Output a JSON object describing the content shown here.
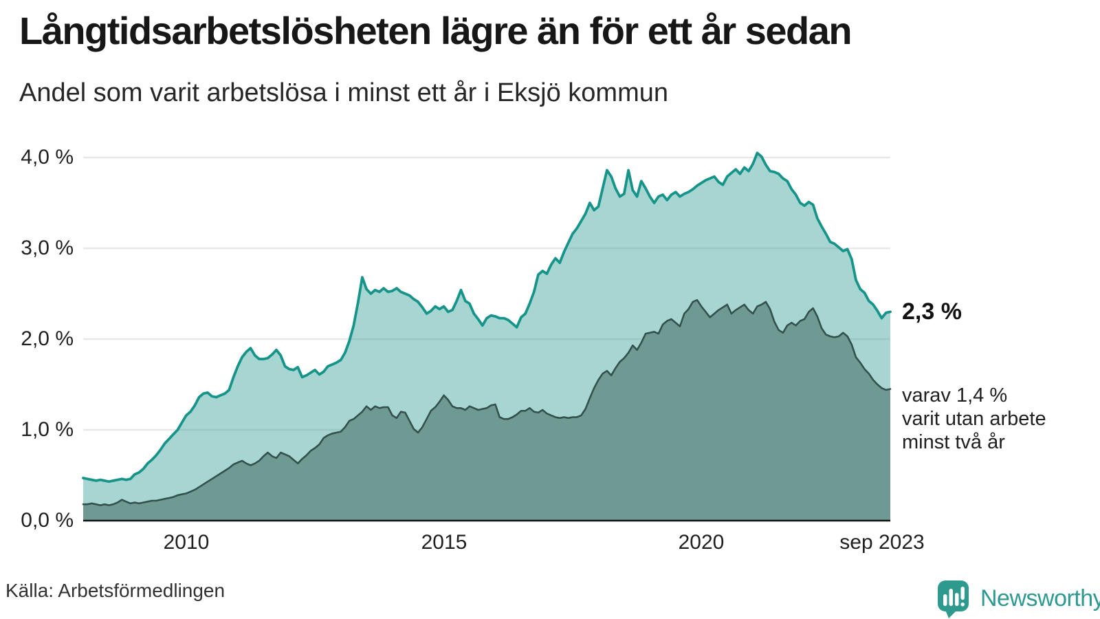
{
  "header": {
    "title": "Långtidsarbetslösheten lägre än för ett år sedan",
    "subtitle": "Andel som varit arbetslösa i minst ett år i Eksjö kommun"
  },
  "chart_data": {
    "type": "area",
    "title": "Långtidsarbetslösheten lägre än för ett år sedan",
    "subtitle": "Andel som varit arbetslösa i minst ett år i Eksjö kommun",
    "x_start": "2008-01",
    "x_end": "2023-09",
    "x_ticks": [
      {
        "label": "2010",
        "month_index": 24
      },
      {
        "label": "2015",
        "month_index": 84
      },
      {
        "label": "2020",
        "month_index": 144
      },
      {
        "label": "sep 2023",
        "month_index": 186
      }
    ],
    "y_ticks": [
      {
        "label": "0,0 %",
        "value": 0
      },
      {
        "label": "1,0 %",
        "value": 1
      },
      {
        "label": "2,0 %",
        "value": 2
      },
      {
        "label": "3,0 %",
        "value": 3
      },
      {
        "label": "4,0 %",
        "value": 4
      }
    ],
    "ylim": [
      0,
      4.3
    ],
    "grid": true,
    "legend": "none",
    "colors": {
      "line_1yr": "#17948a",
      "fill_1yr": "rgba(23,148,138,0.38)",
      "line_2yr": "#33504c",
      "fill_2yr": "#6f9a94",
      "gridline": "#e8e8eb",
      "axis": "#111111"
    },
    "series": [
      {
        "name": "Arbetslösa minst ett år",
        "last_value": 2.3,
        "values": [
          0.47,
          0.46,
          0.45,
          0.44,
          0.45,
          0.44,
          0.43,
          0.44,
          0.45,
          0.46,
          0.45,
          0.46,
          0.51,
          0.53,
          0.57,
          0.63,
          0.67,
          0.72,
          0.78,
          0.85,
          0.9,
          0.95,
          1.0,
          1.08,
          1.16,
          1.2,
          1.27,
          1.36,
          1.4,
          1.41,
          1.37,
          1.36,
          1.38,
          1.4,
          1.44,
          1.58,
          1.7,
          1.8,
          1.86,
          1.9,
          1.82,
          1.78,
          1.78,
          1.79,
          1.83,
          1.88,
          1.82,
          1.7,
          1.67,
          1.66,
          1.69,
          1.58,
          1.6,
          1.63,
          1.66,
          1.61,
          1.64,
          1.7,
          1.72,
          1.74,
          1.77,
          1.85,
          1.98,
          2.15,
          2.4,
          2.68,
          2.55,
          2.5,
          2.54,
          2.52,
          2.56,
          2.52,
          2.53,
          2.56,
          2.52,
          2.5,
          2.48,
          2.44,
          2.41,
          2.35,
          2.28,
          2.31,
          2.36,
          2.33,
          2.36,
          2.3,
          2.32,
          2.42,
          2.54,
          2.42,
          2.39,
          2.28,
          2.22,
          2.15,
          2.23,
          2.26,
          2.25,
          2.23,
          2.23,
          2.21,
          2.17,
          2.13,
          2.24,
          2.28,
          2.39,
          2.52,
          2.71,
          2.75,
          2.72,
          2.82,
          2.89,
          2.84,
          2.96,
          3.06,
          3.16,
          3.22,
          3.3,
          3.38,
          3.5,
          3.42,
          3.46,
          3.66,
          3.86,
          3.79,
          3.66,
          3.57,
          3.6,
          3.86,
          3.64,
          3.57,
          3.74,
          3.66,
          3.57,
          3.5,
          3.57,
          3.59,
          3.53,
          3.59,
          3.62,
          3.57,
          3.6,
          3.62,
          3.65,
          3.69,
          3.72,
          3.75,
          3.77,
          3.79,
          3.73,
          3.7,
          3.79,
          3.83,
          3.87,
          3.82,
          3.89,
          3.85,
          3.93,
          4.05,
          4.01,
          3.92,
          3.85,
          3.84,
          3.82,
          3.77,
          3.74,
          3.65,
          3.59,
          3.5,
          3.47,
          3.51,
          3.48,
          3.33,
          3.24,
          3.16,
          3.07,
          3.05,
          3.01,
          2.97,
          2.99,
          2.88,
          2.65,
          2.55,
          2.51,
          2.42,
          2.38,
          2.31,
          2.23,
          2.29,
          2.3
        ]
      },
      {
        "name": "Varav utan arbete minst två år",
        "last_value": 1.4,
        "values": [
          0.18,
          0.18,
          0.19,
          0.18,
          0.17,
          0.18,
          0.17,
          0.18,
          0.2,
          0.23,
          0.21,
          0.19,
          0.2,
          0.19,
          0.2,
          0.21,
          0.22,
          0.22,
          0.23,
          0.24,
          0.25,
          0.26,
          0.28,
          0.29,
          0.3,
          0.32,
          0.34,
          0.37,
          0.4,
          0.43,
          0.46,
          0.49,
          0.52,
          0.55,
          0.58,
          0.62,
          0.64,
          0.66,
          0.63,
          0.61,
          0.63,
          0.66,
          0.71,
          0.75,
          0.71,
          0.69,
          0.75,
          0.73,
          0.71,
          0.67,
          0.63,
          0.68,
          0.72,
          0.77,
          0.8,
          0.84,
          0.91,
          0.94,
          0.96,
          0.97,
          0.98,
          1.03,
          1.1,
          1.12,
          1.16,
          1.2,
          1.26,
          1.22,
          1.26,
          1.24,
          1.25,
          1.25,
          1.16,
          1.13,
          1.2,
          1.19,
          1.1,
          1.01,
          0.97,
          1.03,
          1.12,
          1.21,
          1.25,
          1.31,
          1.38,
          1.33,
          1.26,
          1.24,
          1.24,
          1.22,
          1.26,
          1.24,
          1.22,
          1.23,
          1.24,
          1.27,
          1.28,
          1.14,
          1.12,
          1.12,
          1.14,
          1.17,
          1.21,
          1.21,
          1.24,
          1.2,
          1.19,
          1.22,
          1.18,
          1.16,
          1.14,
          1.13,
          1.14,
          1.13,
          1.14,
          1.14,
          1.16,
          1.23,
          1.35,
          1.46,
          1.55,
          1.62,
          1.65,
          1.6,
          1.68,
          1.75,
          1.79,
          1.85,
          1.93,
          1.88,
          1.96,
          2.06,
          2.07,
          2.08,
          2.06,
          2.16,
          2.2,
          2.22,
          2.18,
          2.14,
          2.28,
          2.33,
          2.41,
          2.43,
          2.36,
          2.3,
          2.24,
          2.28,
          2.32,
          2.35,
          2.38,
          2.28,
          2.32,
          2.35,
          2.38,
          2.32,
          2.28,
          2.36,
          2.38,
          2.41,
          2.33,
          2.19,
          2.1,
          2.07,
          2.15,
          2.18,
          2.15,
          2.2,
          2.22,
          2.3,
          2.34,
          2.25,
          2.12,
          2.05,
          2.03,
          2.02,
          2.03,
          2.07,
          2.03,
          1.94,
          1.8,
          1.74,
          1.67,
          1.62,
          1.55,
          1.5,
          1.46,
          1.44,
          1.45
        ]
      }
    ],
    "annotations": {
      "value_label": "2,3 %",
      "secondary_label": "varav 1,4 %\nvarit utan arbete\nminst två år"
    }
  },
  "annotations": {
    "value": "2,3 %",
    "secondary": "varav 1,4 %\nvarit utan arbete\nminst två år"
  },
  "footer": {
    "source": "Källa: Arbetsförmedlingen",
    "brand": "Newsworthy"
  }
}
